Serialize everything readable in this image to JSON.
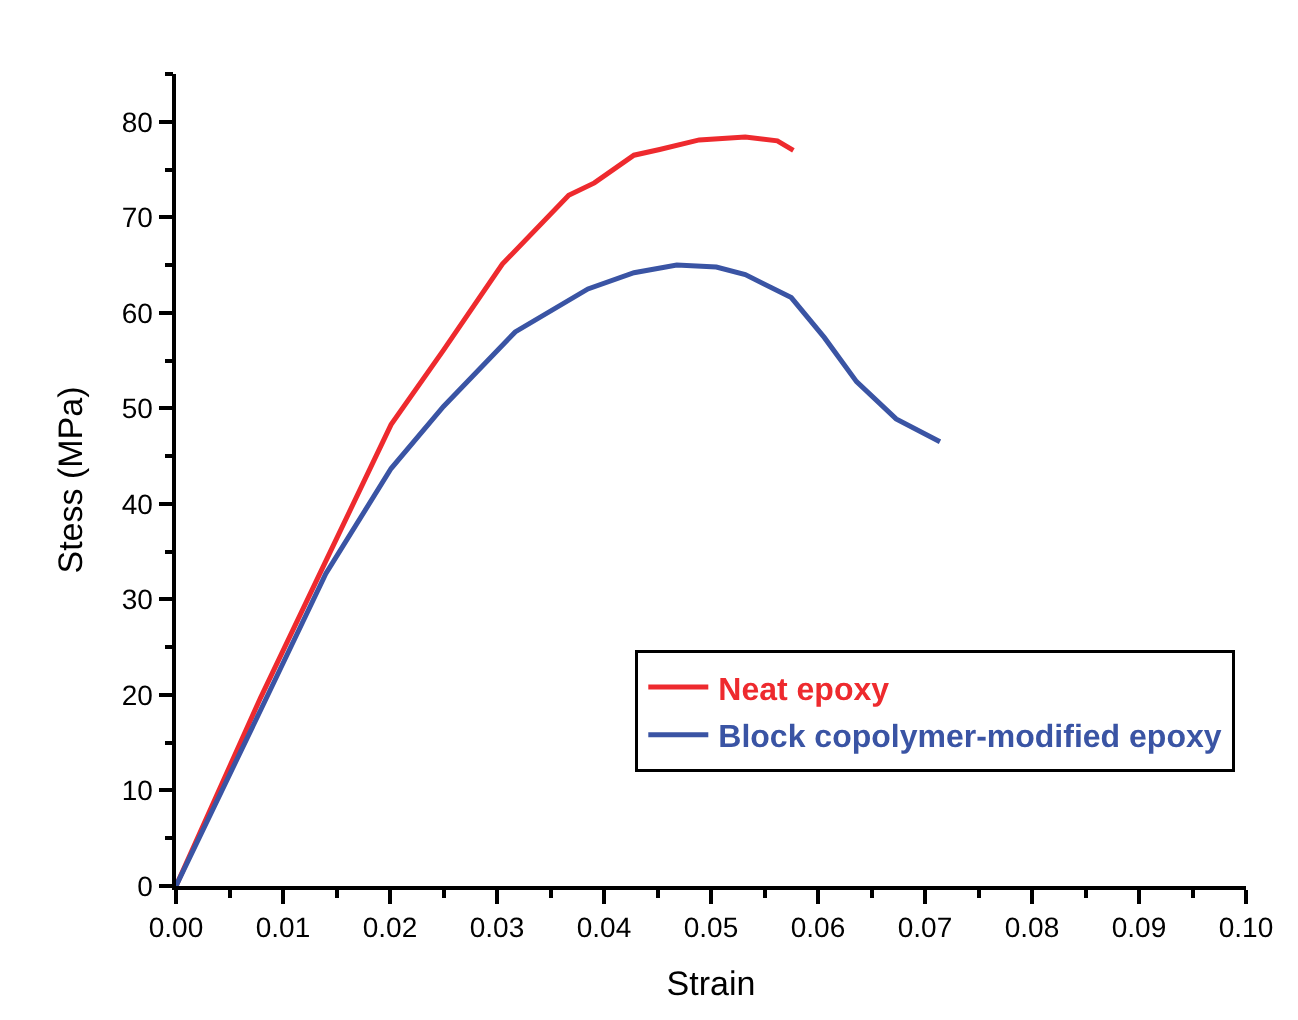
{
  "chart_data": {
    "type": "line",
    "xlabel": "Strain",
    "ylabel": "Stess (MPa)",
    "xlim": [
      0,
      0.1
    ],
    "xticks": [
      {
        "value": 0,
        "label": "0.00"
      },
      0.01,
      0.02,
      0.03,
      0.04,
      0.05,
      0.06,
      0.07,
      0.08,
      0.09,
      {
        "value": 0.1,
        "label": "0.10"
      }
    ],
    "ylim": [
      0,
      85
    ],
    "yticks": [
      0,
      10,
      20,
      30,
      40,
      50,
      60,
      70,
      80
    ],
    "legend": "bottom right",
    "marker": "none",
    "line_style": "solid",
    "series": [
      {
        "name": "Neat epoxy",
        "color": "#ee2a2e",
        "x": [
          0,
          0.0079,
          0.014,
          0.0201,
          0.025,
          0.0305,
          0.0367,
          0.0391,
          0.0428,
          0.0452,
          0.0489,
          0.0532,
          0.0562,
          0.0577
        ],
        "values": [
          0,
          19.7,
          34.0,
          48.3,
          56.1,
          65.1,
          72.3,
          73.6,
          76.5,
          77.1,
          78.1,
          78.4,
          78.0,
          77.0
        ]
      },
      {
        "name": "Block copolymer-modified epoxy",
        "color": "#3a54a4",
        "x": [
          0,
          0.0079,
          0.014,
          0.0201,
          0.025,
          0.0317,
          0.0385,
          0.0428,
          0.0468,
          0.0505,
          0.0532,
          0.0575,
          0.0606,
          0.0636,
          0.0673,
          0.0714
        ],
        "values": [
          0,
          18.4,
          32.7,
          43.7,
          50.2,
          58.0,
          62.5,
          64.2,
          65.0,
          64.8,
          64.0,
          61.6,
          57.4,
          52.8,
          48.9,
          46.5
        ]
      }
    ]
  }
}
